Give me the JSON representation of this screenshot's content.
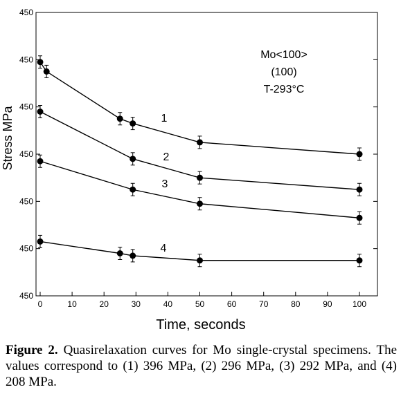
{
  "chart_data": {
    "type": "line",
    "xlabel": "Time, seconds",
    "ylabel": "Stress MPa",
    "xlim": [
      0,
      100
    ],
    "ylim": [
      0,
      6
    ],
    "x_ticks": [
      0,
      10,
      20,
      30,
      40,
      50,
      60,
      70,
      80,
      90,
      100
    ],
    "y_ticks": [
      0,
      1,
      2,
      3,
      4,
      5,
      6
    ],
    "y_tick_labels": [
      "450",
      "450",
      "450",
      "450",
      "450",
      "450",
      "450"
    ],
    "grid": false,
    "error_bars": true,
    "annotation": [
      "Mo<100>",
      "(100)",
      "T-293°C"
    ],
    "series": [
      {
        "name": "1",
        "x": [
          0,
          2,
          25,
          29,
          50,
          100
        ],
        "y": [
          4.95,
          4.75,
          3.75,
          3.65,
          3.25,
          3.0
        ]
      },
      {
        "name": "2",
        "x": [
          0,
          29,
          50,
          100
        ],
        "y": [
          3.9,
          2.9,
          2.5,
          2.25
        ]
      },
      {
        "name": "3",
        "x": [
          0,
          29,
          50,
          100
        ],
        "y": [
          2.85,
          2.25,
          1.95,
          1.65
        ]
      },
      {
        "name": "4",
        "x": [
          0,
          25,
          29,
          50,
          100
        ],
        "y": [
          1.15,
          0.9,
          0.85,
          0.75,
          0.75
        ]
      }
    ]
  },
  "caption": {
    "label": "Figure 2.",
    "text": " Quasirelaxation curves for Mo single-crystal specimens. The values correspond to (1) 396 MPa, (2) 296 MPa, (3) 292 MPa, and (4) 208 MPa."
  }
}
